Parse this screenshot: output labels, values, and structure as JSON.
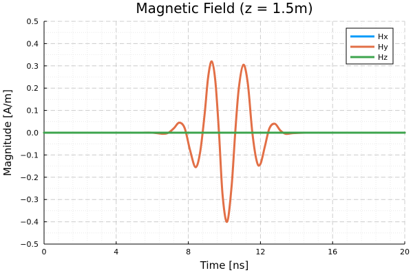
{
  "chart_data": {
    "type": "line",
    "title": "Magnetic Field (z = 1.5m)",
    "xlabel": "Time [ns]",
    "ylabel": "Magnitude [A/m]",
    "xlim": [
      0,
      20
    ],
    "ylim": [
      -0.5,
      0.5
    ],
    "xticks": [
      0,
      4,
      8,
      12,
      16,
      20
    ],
    "xtick_labels": [
      "0",
      "4",
      "8",
      "12",
      "16",
      "20"
    ],
    "yticks": [
      -0.5,
      -0.4,
      -0.3,
      -0.2,
      -0.1,
      0.0,
      0.1,
      0.2,
      0.3,
      0.4,
      0.5
    ],
    "ytick_labels": [
      "−0.5",
      "−0.4",
      "−0.3",
      "−0.2",
      "−0.1",
      "0.0",
      "0.1",
      "0.2",
      "0.3",
      "0.4",
      "0.5"
    ],
    "grid": true,
    "legend_position": "top-right",
    "series": [
      {
        "name": "Hx",
        "color": "#009AFA",
        "x": [
          0,
          20
        ],
        "y": [
          0,
          0
        ]
      },
      {
        "name": "Hy",
        "color": "#E26F46",
        "x": [
          0,
          5.0,
          6.0,
          6.6,
          6.9,
          7.2,
          7.5,
          7.8,
          8.1,
          8.4,
          8.65,
          8.9,
          9.1,
          9.3,
          9.5,
          9.7,
          9.9,
          10.15,
          10.4,
          10.6,
          10.8,
          11.05,
          11.3,
          11.55,
          11.8,
          12.0,
          12.25,
          12.5,
          12.8,
          13.1,
          13.4,
          13.8,
          14.5,
          15.5,
          20
        ],
        "y": [
          0,
          0.0,
          0.0,
          -0.005,
          0.0,
          0.02,
          0.045,
          0.02,
          -0.08,
          -0.155,
          -0.09,
          0.08,
          0.25,
          0.32,
          0.23,
          0.0,
          -0.28,
          -0.4,
          -0.24,
          0.0,
          0.2,
          0.305,
          0.22,
          0.0,
          -0.13,
          -0.14,
          -0.06,
          0.02,
          0.04,
          0.01,
          -0.005,
          -0.002,
          0.0,
          0.0,
          0
        ]
      },
      {
        "name": "Hz",
        "color": "#3DA44D",
        "x": [
          0,
          20
        ],
        "y": [
          0,
          0
        ]
      }
    ]
  }
}
